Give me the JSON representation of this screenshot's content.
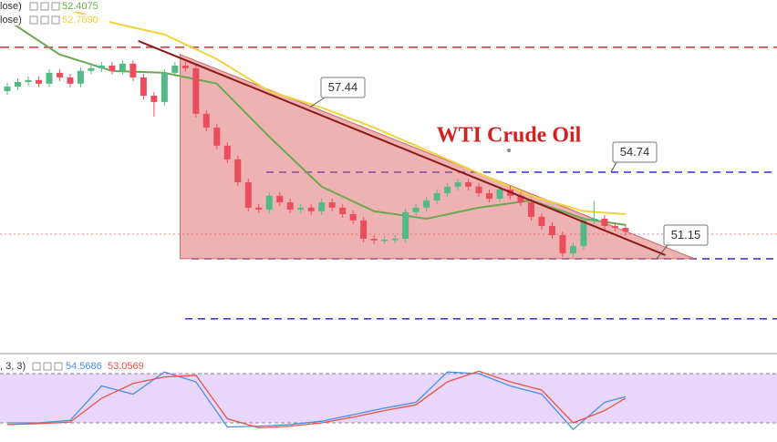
{
  "chart_data": [
    {
      "type": "candlestick",
      "title": "WTI Crude Oil",
      "ylim": [
        47.33,
        61.88
      ],
      "open": [
        58.1,
        58.29,
        58.48,
        58.56,
        58.41,
        58.86,
        58.67,
        58.41,
        58.94,
        59.05,
        59.16,
        58.94,
        59.24,
        58.67,
        57.91,
        57.65,
        58.86,
        59.16,
        59.05,
        57.16,
        56.59,
        55.84,
        55.27,
        54.32,
        53.27,
        53.19,
        53.76,
        53.49,
        53.19,
        53.27,
        53.12,
        53.49,
        53.27,
        53.0,
        52.74,
        51.98,
        51.91,
        51.94,
        51.98,
        53.08,
        53.27,
        53.57,
        53.87,
        54.14,
        54.32,
        54.14,
        53.87,
        53.64,
        54.02,
        53.76,
        53.49,
        52.89,
        52.51,
        52.13,
        51.38,
        51.68,
        52.74,
        52.81,
        52.51,
        52.43
      ],
      "high": [
        58.44,
        58.63,
        58.71,
        58.71,
        59.01,
        59.01,
        58.82,
        59.09,
        59.2,
        59.31,
        59.31,
        59.39,
        59.39,
        58.82,
        58.06,
        59.01,
        59.31,
        59.31,
        59.2,
        57.31,
        56.74,
        55.99,
        55.42,
        54.47,
        53.42,
        53.91,
        53.91,
        53.64,
        53.42,
        53.42,
        53.64,
        53.64,
        53.42,
        53.15,
        52.89,
        52.13,
        52.09,
        52.13,
        53.23,
        53.42,
        53.72,
        54.02,
        54.29,
        54.47,
        54.47,
        54.29,
        54.02,
        54.17,
        54.17,
        53.91,
        53.64,
        53.04,
        52.66,
        52.28,
        51.83,
        52.89,
        53.55,
        52.96,
        52.66,
        52.58
      ],
      "low": [
        57.95,
        58.14,
        58.33,
        58.26,
        58.26,
        58.52,
        58.26,
        58.26,
        58.79,
        58.9,
        58.79,
        58.79,
        58.52,
        57.76,
        57.05,
        57.5,
        58.71,
        58.9,
        57.01,
        56.44,
        55.69,
        55.12,
        54.17,
        53.12,
        53.04,
        53.04,
        53.34,
        53.04,
        53.04,
        52.97,
        52.97,
        53.12,
        52.85,
        52.59,
        51.83,
        51.76,
        51.76,
        51.79,
        51.83,
        52.93,
        53.12,
        53.42,
        53.72,
        53.99,
        53.99,
        53.72,
        53.49,
        53.49,
        53.61,
        53.34,
        52.74,
        52.36,
        51.98,
        51.23,
        51.23,
        51.53,
        52.59,
        52.36,
        52.28,
        52.13
      ],
      "close": [
        58.29,
        58.48,
        58.56,
        58.41,
        58.86,
        58.67,
        58.41,
        58.94,
        59.05,
        59.16,
        58.94,
        59.24,
        58.67,
        57.91,
        57.65,
        58.86,
        59.16,
        59.05,
        57.16,
        56.59,
        55.84,
        55.27,
        54.32,
        53.27,
        53.19,
        53.76,
        53.49,
        53.19,
        53.27,
        53.12,
        53.49,
        53.27,
        53.0,
        52.74,
        51.98,
        51.91,
        51.94,
        51.98,
        53.08,
        53.27,
        53.57,
        53.87,
        54.14,
        54.32,
        54.14,
        53.87,
        53.64,
        54.02,
        53.76,
        53.49,
        52.89,
        52.51,
        52.13,
        51.38,
        51.68,
        52.74,
        52.81,
        52.51,
        52.43,
        52.28
      ],
      "up_color": "#53b987",
      "down_color": "#eb4d5c",
      "lines": [
        {
          "label": "lose)",
          "legend_value": 52.4075,
          "color": "#6aa84f",
          "x": [
            0,
            5,
            10,
            15,
            20,
            25,
            30,
            35,
            40,
            45,
            50,
            55,
            59
          ],
          "values": [
            61.05,
            59.62,
            58.94,
            58.86,
            58.41,
            56.21,
            54.14,
            53.12,
            52.81,
            53.27,
            53.57,
            52.81,
            52.55
          ]
        },
        {
          "label": "lose)",
          "legend_value": {
            "value": 52.769,
            "label": "52.7690"
          },
          "color": "#f0d43a",
          "x": [
            5,
            10,
            15,
            20,
            25,
            30,
            35,
            40,
            45,
            50,
            55,
            59
          ],
          "values": [
            61.58,
            60.94,
            60.45,
            59.43,
            58.1,
            57.42,
            56.59,
            55.65,
            54.7,
            53.76,
            53.12,
            53.0
          ]
        }
      ],
      "levels": [
        {
          "value": 59.92,
          "color": "#d32f2f"
        },
        {
          "value": 54.74,
          "color": "#3f3fd0"
        },
        {
          "value": 51.15,
          "color": "#3f3fd0"
        },
        {
          "value": 48.66,
          "color": "#3f3fd0"
        },
        {
          "value": 52.17,
          "color": "#e57373"
        }
      ],
      "trendline": {
        "x": [
          12.5,
          62.8
        ],
        "y": [
          60.18,
          51.3
        ],
        "color": "#8b1a1a"
      },
      "triangle": {
        "x": [
          16.5,
          65.6,
          16.5
        ],
        "y": [
          59.62,
          51.15,
          51.15
        ],
        "color": "#e06666"
      },
      "callouts": [
        57.44,
        54.74,
        51.15
      ]
    },
    {
      "type": "line",
      "label": ", 3, 3)",
      "ylim": [
        0,
        100
      ],
      "bands": [
        20,
        80
      ],
      "series": [
        {
          "legend_value": 54.5686,
          "color": "#4a90e2",
          "x": [
            0,
            3,
            6,
            9,
            12,
            15,
            18,
            21,
            24,
            27,
            30,
            33,
            36,
            39,
            42,
            45,
            48,
            51,
            54,
            57,
            59
          ],
          "values": [
            20,
            20,
            23,
            65,
            55,
            82,
            70,
            15,
            16,
            18,
            22,
            30,
            38,
            45,
            82,
            80,
            65,
            55,
            12,
            45,
            52
          ]
        },
        {
          "legend_value": 53.0569,
          "color": "#e8553f",
          "x": [
            0,
            3,
            6,
            9,
            12,
            15,
            18,
            21,
            24,
            27,
            30,
            33,
            36,
            39,
            42,
            45,
            48,
            51,
            54,
            57,
            59
          ],
          "values": [
            18,
            19,
            21,
            50,
            68,
            76,
            78,
            25,
            14,
            16,
            20,
            27,
            35,
            42,
            70,
            83,
            70,
            60,
            20,
            35,
            50
          ]
        }
      ]
    }
  ]
}
